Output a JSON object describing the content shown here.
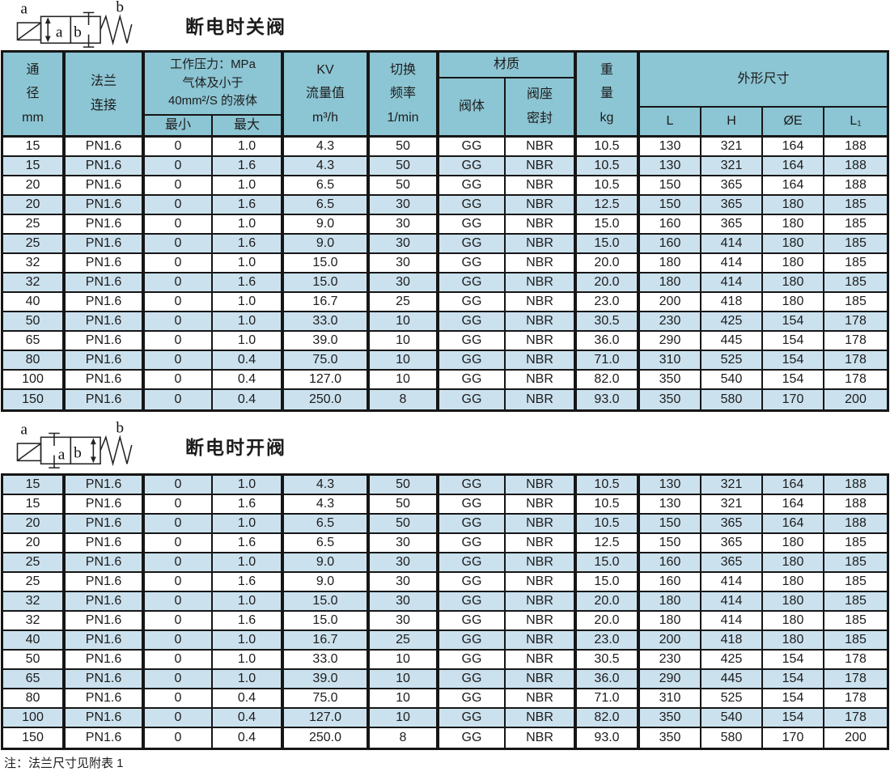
{
  "colors": {
    "header_bg": "#8CC5D3",
    "stripe_blue": "#CBE1EE",
    "row_white": "#FFFFFF",
    "line": "#161616",
    "text": "#1C1C1C"
  },
  "table_header": {
    "diameter": "通\n径\nmm",
    "flange": "法兰\n连接",
    "pressure_title": "工作压力：MPa\n气体及小于\n40mm²/S 的液体",
    "pressure_min": "最小",
    "pressure_max": "最大",
    "kv": "KV\n流量值\nm³/h",
    "freq": "切换\n频率\n1/min",
    "material": "材质",
    "valve_body": "阀体",
    "seat_seal": "阀座\n密封",
    "weight": "重\n量\nkg",
    "dims": "外形尺寸",
    "dim_l": "L",
    "dim_h": "H",
    "dim_oe": "ØE",
    "dim_l1": "L₁"
  },
  "sections": [
    {
      "title": "断电时关阀",
      "symbol": {
        "label_a": "a",
        "label_b": "b",
        "box_a": "a",
        "box_b": "b"
      },
      "stripe_offset": 0,
      "rows": [
        [
          "15",
          "PN1.6",
          "0",
          "1.0",
          "4.3",
          "50",
          "GG",
          "NBR",
          "10.5",
          "130",
          "321",
          "164",
          "188"
        ],
        [
          "15",
          "PN1.6",
          "0",
          "1.6",
          "4.3",
          "50",
          "GG",
          "NBR",
          "10.5",
          "130",
          "321",
          "164",
          "188"
        ],
        [
          "20",
          "PN1.6",
          "0",
          "1.0",
          "6.5",
          "50",
          "GG",
          "NBR",
          "10.5",
          "150",
          "365",
          "164",
          "188"
        ],
        [
          "20",
          "PN1.6",
          "0",
          "1.6",
          "6.5",
          "30",
          "GG",
          "NBR",
          "12.5",
          "150",
          "365",
          "180",
          "185"
        ],
        [
          "25",
          "PN1.6",
          "0",
          "1.0",
          "9.0",
          "30",
          "GG",
          "NBR",
          "15.0",
          "160",
          "365",
          "180",
          "185"
        ],
        [
          "25",
          "PN1.6",
          "0",
          "1.6",
          "9.0",
          "30",
          "GG",
          "NBR",
          "15.0",
          "160",
          "414",
          "180",
          "185"
        ],
        [
          "32",
          "PN1.6",
          "0",
          "1.0",
          "15.0",
          "30",
          "GG",
          "NBR",
          "20.0",
          "180",
          "414",
          "180",
          "185"
        ],
        [
          "32",
          "PN1.6",
          "0",
          "1.6",
          "15.0",
          "30",
          "GG",
          "NBR",
          "20.0",
          "180",
          "414",
          "180",
          "185"
        ],
        [
          "40",
          "PN1.6",
          "0",
          "1.0",
          "16.7",
          "25",
          "GG",
          "NBR",
          "23.0",
          "200",
          "418",
          "180",
          "185"
        ],
        [
          "50",
          "PN1.6",
          "0",
          "1.0",
          "33.0",
          "10",
          "GG",
          "NBR",
          "30.5",
          "230",
          "425",
          "154",
          "178"
        ],
        [
          "65",
          "PN1.6",
          "0",
          "1.0",
          "39.0",
          "10",
          "GG",
          "NBR",
          "36.0",
          "290",
          "445",
          "154",
          "178"
        ],
        [
          "80",
          "PN1.6",
          "0",
          "0.4",
          "75.0",
          "10",
          "GG",
          "NBR",
          "71.0",
          "310",
          "525",
          "154",
          "178"
        ],
        [
          "100",
          "PN1.6",
          "0",
          "0.4",
          "127.0",
          "10",
          "GG",
          "NBR",
          "82.0",
          "350",
          "540",
          "154",
          "178"
        ],
        [
          "150",
          "PN1.6",
          "0",
          "0.4",
          "250.0",
          "8",
          "GG",
          "NBR",
          "93.0",
          "350",
          "580",
          "170",
          "200"
        ]
      ]
    },
    {
      "title": "断电时开阀",
      "symbol": {
        "label_a": "a",
        "label_b": "b",
        "box_a": "a",
        "box_b": "b"
      },
      "stripe_offset": 1,
      "rows": [
        [
          "15",
          "PN1.6",
          "0",
          "1.0",
          "4.3",
          "50",
          "GG",
          "NBR",
          "10.5",
          "130",
          "321",
          "164",
          "188"
        ],
        [
          "15",
          "PN1.6",
          "0",
          "1.6",
          "4.3",
          "50",
          "GG",
          "NBR",
          "10.5",
          "130",
          "321",
          "164",
          "188"
        ],
        [
          "20",
          "PN1.6",
          "0",
          "1.0",
          "6.5",
          "50",
          "GG",
          "NBR",
          "10.5",
          "150",
          "365",
          "164",
          "188"
        ],
        [
          "20",
          "PN1.6",
          "0",
          "1.6",
          "6.5",
          "30",
          "GG",
          "NBR",
          "12.5",
          "150",
          "365",
          "180",
          "185"
        ],
        [
          "25",
          "PN1.6",
          "0",
          "1.0",
          "9.0",
          "30",
          "GG",
          "NBR",
          "15.0",
          "160",
          "365",
          "180",
          "185"
        ],
        [
          "25",
          "PN1.6",
          "0",
          "1.6",
          "9.0",
          "30",
          "GG",
          "NBR",
          "15.0",
          "160",
          "414",
          "180",
          "185"
        ],
        [
          "32",
          "PN1.6",
          "0",
          "1.0",
          "15.0",
          "30",
          "GG",
          "NBR",
          "20.0",
          "180",
          "414",
          "180",
          "185"
        ],
        [
          "32",
          "PN1.6",
          "0",
          "1.6",
          "15.0",
          "30",
          "GG",
          "NBR",
          "20.0",
          "180",
          "414",
          "180",
          "185"
        ],
        [
          "40",
          "PN1.6",
          "0",
          "1.0",
          "16.7",
          "25",
          "GG",
          "NBR",
          "23.0",
          "200",
          "418",
          "180",
          "185"
        ],
        [
          "50",
          "PN1.6",
          "0",
          "1.0",
          "33.0",
          "10",
          "GG",
          "NBR",
          "30.5",
          "230",
          "425",
          "154",
          "178"
        ],
        [
          "65",
          "PN1.6",
          "0",
          "1.0",
          "39.0",
          "10",
          "GG",
          "NBR",
          "36.0",
          "290",
          "445",
          "154",
          "178"
        ],
        [
          "80",
          "PN1.6",
          "0",
          "0.4",
          "75.0",
          "10",
          "GG",
          "NBR",
          "71.0",
          "310",
          "525",
          "154",
          "178"
        ],
        [
          "100",
          "PN1.6",
          "0",
          "0.4",
          "127.0",
          "10",
          "GG",
          "NBR",
          "82.0",
          "350",
          "540",
          "154",
          "178"
        ],
        [
          "150",
          "PN1.6",
          "0",
          "0.4",
          "250.0",
          "8",
          "GG",
          "NBR",
          "93.0",
          "350",
          "580",
          "170",
          "200"
        ]
      ]
    }
  ],
  "note": "注：法兰尺寸见附表 1"
}
